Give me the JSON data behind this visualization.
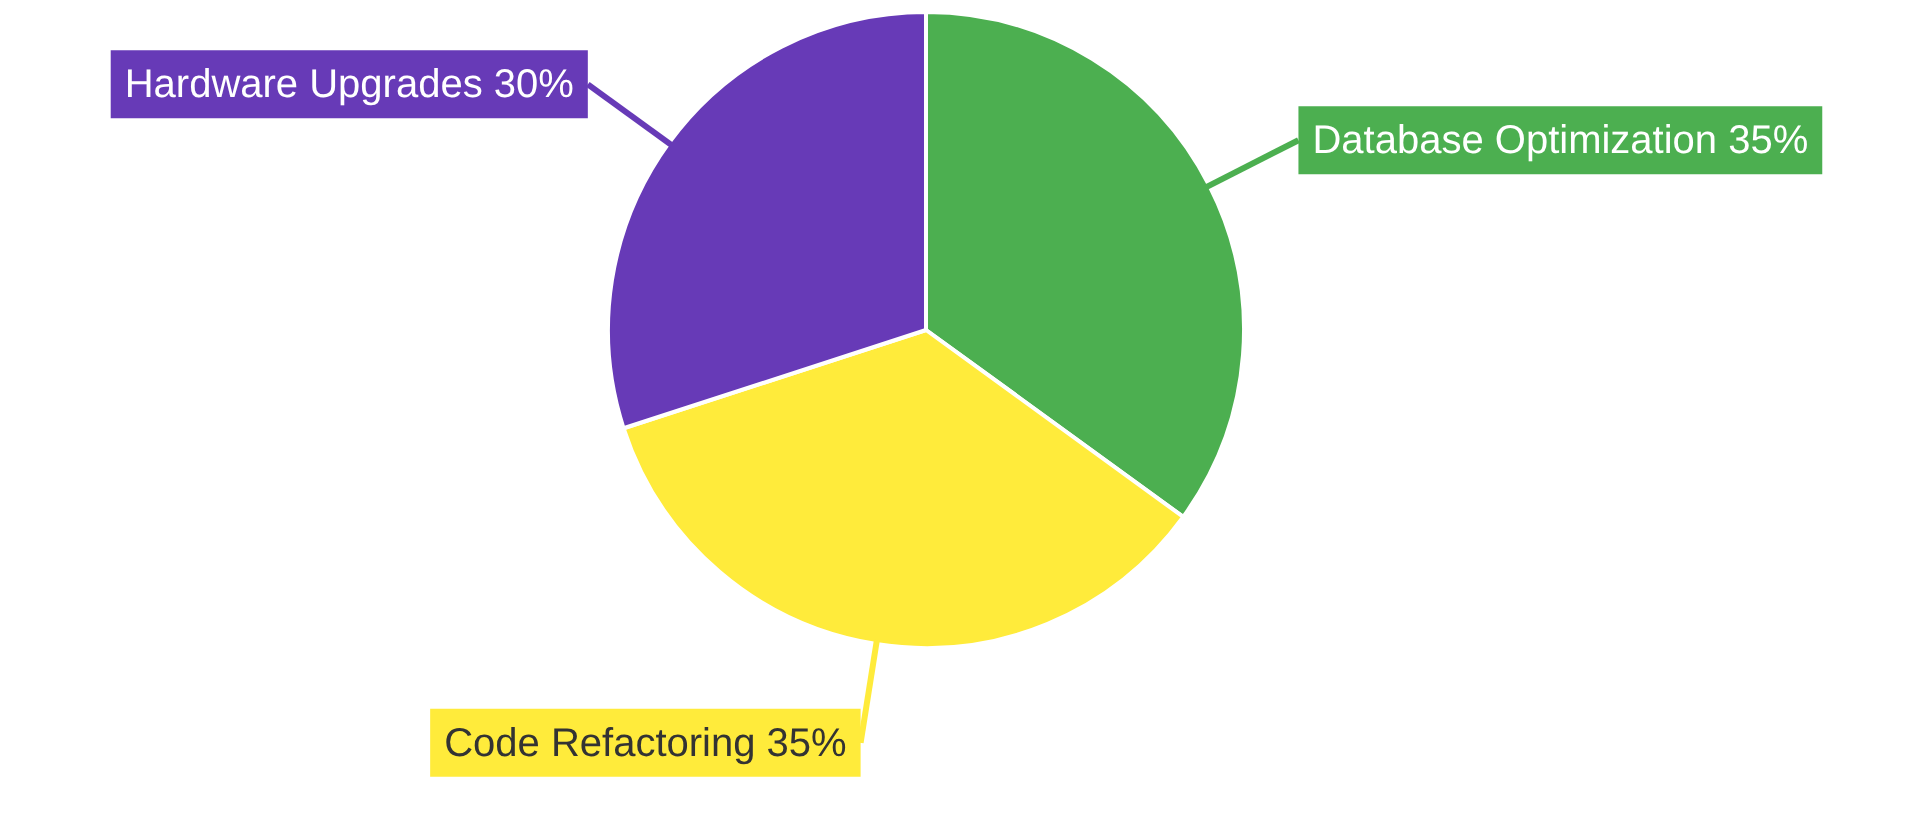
{
  "chart_data": {
    "type": "pie",
    "categories": [
      "Database Optimization",
      "Code Refactoring",
      "Hardware Upgrades"
    ],
    "values": [
      35,
      35,
      30
    ],
    "colors": [
      "#4caf50",
      "#ffeb3b",
      "#673ab7"
    ],
    "value_labels": [
      "35%",
      "35%",
      "30%"
    ],
    "legend": false
  }
}
